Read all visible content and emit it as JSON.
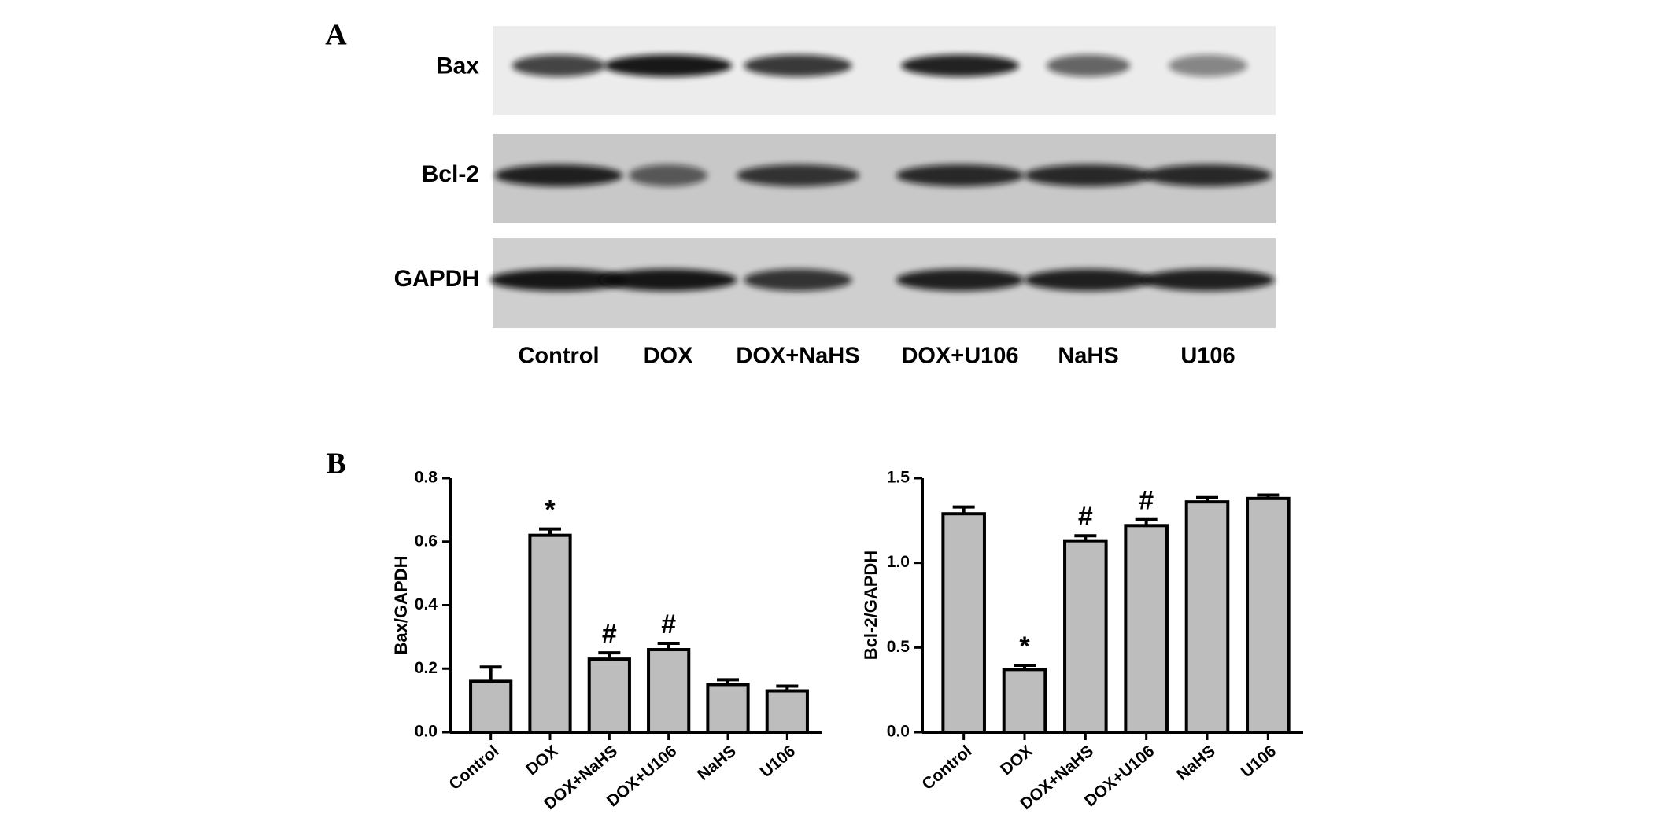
{
  "panel_a": {
    "label": "A",
    "rows": [
      "Bax",
      "Bcl-2",
      "GAPDH"
    ],
    "lanes": [
      "Control",
      "DOX",
      "DOX+NaHS",
      "DOX+U106",
      "NaHS",
      "U106"
    ]
  },
  "panel_b_label": "B",
  "chart_data": [
    {
      "type": "bar",
      "y_label": "Bax/GAPDH",
      "categories": [
        "Control",
        "DOX",
        "DOX+NaHS",
        "DOX+U106",
        "NaHS",
        "U106"
      ],
      "values": [
        0.16,
        0.62,
        0.23,
        0.26,
        0.15,
        0.13
      ],
      "errors": [
        0.045,
        0.02,
        0.02,
        0.02,
        0.015,
        0.015
      ],
      "markers": [
        null,
        "*",
        "#",
        "#",
        null,
        null
      ],
      "color": "#bdbdbd",
      "ylim": [
        0,
        0.8
      ],
      "yticks": [
        {
          "value": 0,
          "label": "0.0"
        },
        0.2,
        0.4,
        0.6,
        0.8
      ]
    },
    {
      "type": "bar",
      "y_label": "Bcl-2/GAPDH",
      "categories": [
        "Control",
        "DOX",
        "DOX+NaHS",
        "DOX+U106",
        "NaHS",
        "U106"
      ],
      "values": [
        1.29,
        0.37,
        1.13,
        1.22,
        1.36,
        1.38
      ],
      "errors": [
        0.04,
        0.025,
        0.03,
        0.035,
        0.025,
        0.02
      ],
      "markers": [
        null,
        "*",
        "#",
        "#",
        null,
        null
      ],
      "color": "#bdbdbd",
      "ylim": [
        0,
        1.5
      ],
      "yticks": [
        {
          "value": 0,
          "label": "0.0"
        },
        0.5,
        {
          "value": 1,
          "label": "1.0"
        },
        1.5
      ]
    }
  ]
}
